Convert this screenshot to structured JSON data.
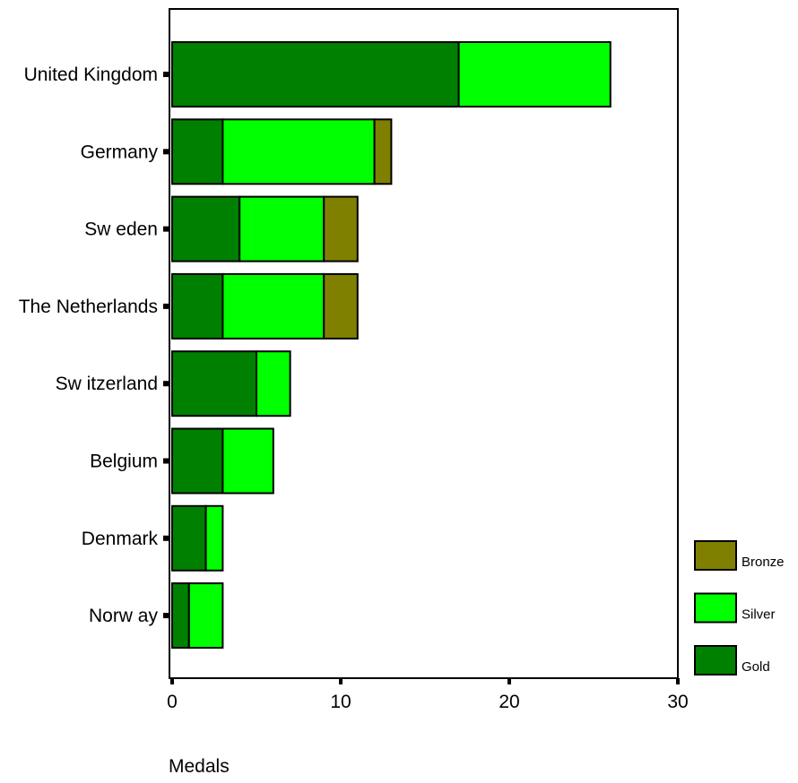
{
  "chart_data": {
    "type": "bar",
    "orientation": "horizontal",
    "stacked": true,
    "title": "",
    "xlabel": "Medals",
    "ylabel": "",
    "xlim": [
      0,
      30
    ],
    "x_ticks": [
      0,
      10,
      20,
      30
    ],
    "grid": false,
    "legend_position": "bottom-right",
    "categories": [
      "United Kingdom",
      "Germany",
      "Sw eden",
      "The Netherlands",
      "Sw itzerland",
      "Belgium",
      "Denmark",
      "Norw ay"
    ],
    "series": [
      {
        "name": "Gold",
        "color": "#008000",
        "values": [
          17,
          3,
          4,
          3,
          5,
          3,
          2,
          1
        ]
      },
      {
        "name": "Silver",
        "color": "#00ff00",
        "values": [
          9,
          9,
          5,
          6,
          2,
          3,
          1,
          2
        ]
      },
      {
        "name": "Bronze",
        "color": "#808000",
        "values": [
          0,
          1,
          2,
          2,
          0,
          0,
          0,
          0
        ]
      }
    ]
  }
}
